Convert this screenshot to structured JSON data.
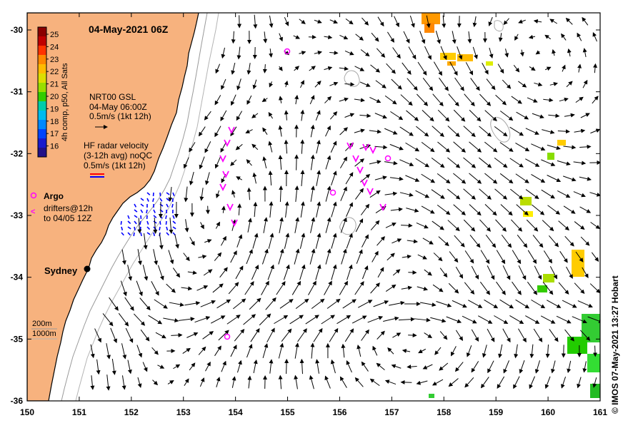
{
  "title": "04-May-2021 06Z",
  "colorbar": {
    "label": "4h comp, p50, All Sats",
    "ticks": [
      "25",
      "24",
      "23",
      "22",
      "21",
      "20",
      "19",
      "18",
      "17",
      "16"
    ],
    "colors": [
      "#8b0000",
      "#c00000",
      "#ff3300",
      "#ff8800",
      "#ffbb00",
      "#dddd00",
      "#99dd00",
      "#33cc00",
      "#00ccaa",
      "#00bbee",
      "#0088ff",
      "#0044ff",
      "#1a1acc",
      "#221188"
    ]
  },
  "legend": {
    "gsl_title": "NRT00 GSL",
    "gsl_time": "04-May 06:00Z",
    "gsl_scale": "0.5m/s (1kt 12h)",
    "hf_title": "HF radar velocity",
    "hf_avg": "(3-12h avg) noQC",
    "hf_scale": "0.5m/s (1kt 12h)",
    "argo": "Argo",
    "drifters_1": "drifters@12h",
    "drifters_2": "to 04/05 12Z"
  },
  "place": "Sydney",
  "depth_labels": [
    "200m",
    "1000m"
  ],
  "axes": {
    "x_ticks": [
      "150",
      "151",
      "152",
      "153",
      "154",
      "155",
      "156",
      "157",
      "158",
      "159",
      "160",
      "161"
    ],
    "y_ticks": [
      "-30",
      "-31",
      "-32",
      "-33",
      "-34",
      "-35",
      "-36"
    ]
  },
  "credit": "© IMOS 07-May-2021 13:27 Hobart",
  "colors": {
    "land": "#f7b27e",
    "coast": "#000000",
    "argo": "#ff00ff",
    "hf": "#0000ff"
  }
}
